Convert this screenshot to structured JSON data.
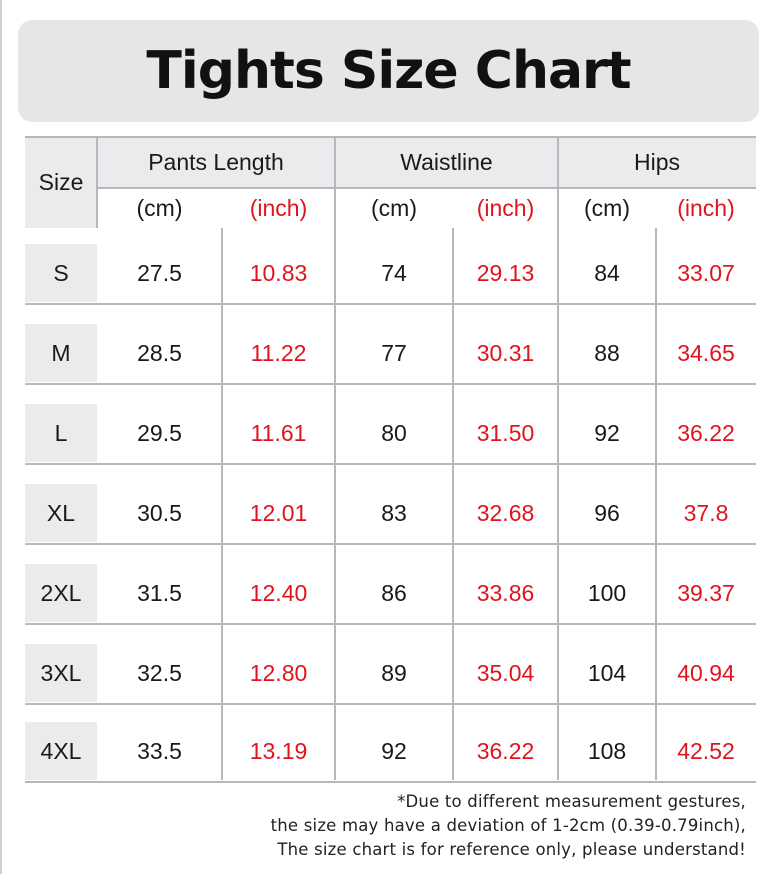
{
  "title": "Tights Size Chart",
  "header": {
    "size_label": "Size",
    "groups": [
      "Pants Length",
      "Waistline",
      "Hips"
    ],
    "units": [
      "(cm)",
      "(inch)",
      "(cm)",
      "(inch)",
      "(cm)",
      "(inch)"
    ]
  },
  "rows": [
    {
      "size": "S",
      "values": [
        "27.5",
        "10.83",
        "74",
        "29.13",
        "84",
        "33.07"
      ]
    },
    {
      "size": "M",
      "values": [
        "28.5",
        "11.22",
        "77",
        "30.31",
        "88",
        "34.65"
      ]
    },
    {
      "size": "L",
      "values": [
        "29.5",
        "11.61",
        "80",
        "31.50",
        "92",
        "36.22"
      ]
    },
    {
      "size": "XL",
      "values": [
        "30.5",
        "12.01",
        "83",
        "32.68",
        "96",
        "37.8"
      ]
    },
    {
      "size": "2XL",
      "values": [
        "31.5",
        "12.40",
        "86",
        "33.86",
        "100",
        "39.37"
      ]
    },
    {
      "size": "3XL",
      "values": [
        "32.5",
        "12.80",
        "89",
        "35.04",
        "104",
        "40.94"
      ]
    },
    {
      "size": "4XL",
      "values": [
        "33.5",
        "13.19",
        "92",
        "36.22",
        "108",
        "42.52"
      ]
    }
  ],
  "footnote": [
    "*Due to different measurement gestures,",
    "the size may have a deviation of 1-2cm (0.39-0.79inch),",
    "The size chart is for reference only, please understand!"
  ],
  "colors": {
    "inch_values": "#e0141e",
    "panel": "#ebebed"
  }
}
